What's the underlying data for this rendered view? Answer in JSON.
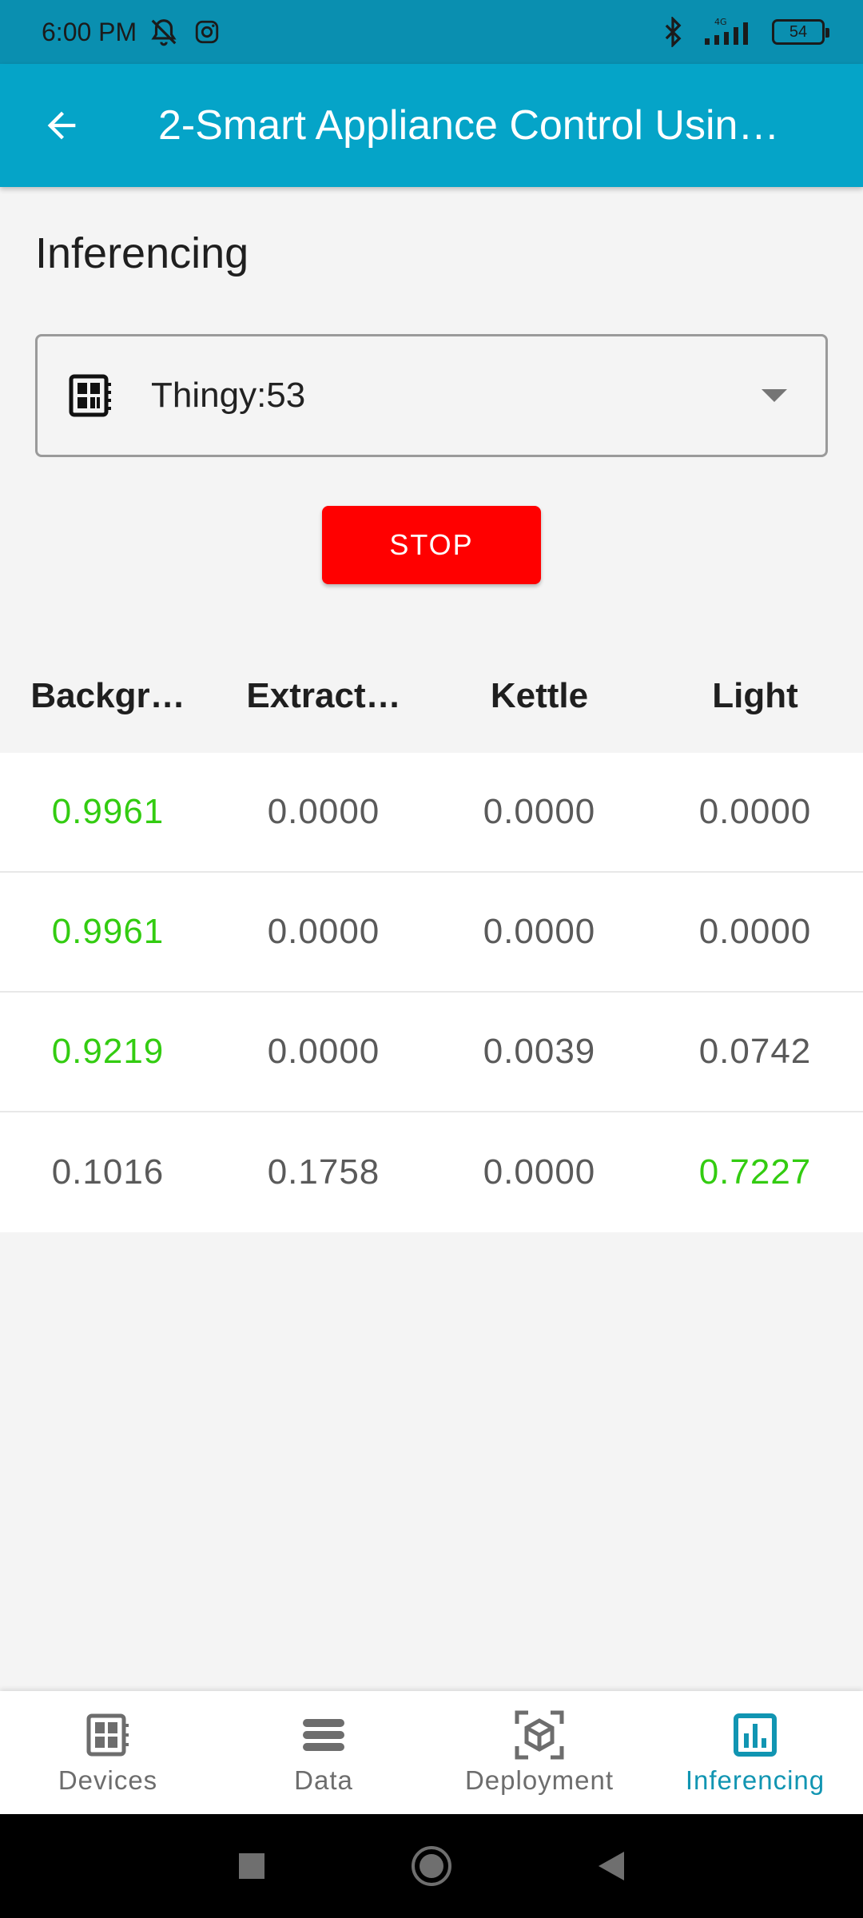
{
  "status_bar": {
    "time": "6:00 PM",
    "icons": [
      "muted-bell-icon",
      "instagram-icon",
      "bluetooth-icon",
      "signal-4g-icon"
    ],
    "battery": "54"
  },
  "app_bar": {
    "title": "2-Smart Appliance Control Usin…",
    "back_icon": "arrow-back-icon",
    "color": "#05a4c8"
  },
  "section_title": "Inferencing",
  "device_select": {
    "icon": "board-chip-icon",
    "value": "Thingy:53"
  },
  "stop_button": {
    "label": "STOP",
    "color": "#ff0000"
  },
  "table": {
    "headers": [
      "Backgr…",
      "Extract…",
      "Kettle",
      "Light"
    ],
    "rows": [
      {
        "cells": [
          "0.9961",
          "0.0000",
          "0.0000",
          "0.0000"
        ],
        "highlight_index": 0
      },
      {
        "cells": [
          "0.9961",
          "0.0000",
          "0.0000",
          "0.0000"
        ],
        "highlight_index": 0
      },
      {
        "cells": [
          "0.9219",
          "0.0000",
          "0.0039",
          "0.0742"
        ],
        "highlight_index": 0
      },
      {
        "cells": [
          "0.1016",
          "0.1758",
          "0.0000",
          "0.7227"
        ],
        "highlight_index": 3
      }
    ],
    "highlight_color": "#33cc11"
  },
  "bottom_nav": {
    "items": [
      {
        "label": "Devices",
        "icon": "devices-icon",
        "active": false
      },
      {
        "label": "Data",
        "icon": "data-stack-icon",
        "active": false
      },
      {
        "label": "Deployment",
        "icon": "deployment-cube-icon",
        "active": false
      },
      {
        "label": "Inferencing",
        "icon": "inferencing-chart-icon",
        "active": true
      }
    ],
    "active_color": "#1195b2"
  },
  "system_nav": [
    "recents-square-icon",
    "home-circle-icon",
    "back-triangle-icon"
  ]
}
